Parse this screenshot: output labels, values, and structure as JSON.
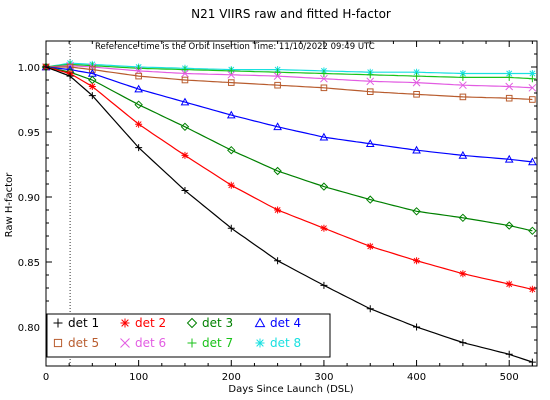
{
  "chart_data": {
    "type": "line",
    "title": "N21 VIIRS raw and fitted H-factor",
    "annotation": "Reference time is the Orbit Insertion Time: 11/10/2022 09:49 UTC",
    "xlabel": "Days Since Launch (DSL)",
    "ylabel": "Raw H-factor",
    "xlim": [
      0,
      530
    ],
    "ylim": [
      0.77,
      1.02
    ],
    "x_ticks": [
      0,
      100,
      200,
      300,
      400,
      500
    ],
    "y_ticks": [
      0.8,
      0.85,
      0.9,
      0.95,
      1.0
    ],
    "y_tick_labels": [
      "0.80",
      "0.85",
      "0.90",
      "0.95",
      "1.00"
    ],
    "reference_line_x": 26,
    "grid": false,
    "legend_position": "bottom-left",
    "series": [
      {
        "name": "det 1",
        "marker": "+",
        "color": "#000000",
        "x": [
          0,
          26,
          50,
          100,
          150,
          200,
          250,
          300,
          350,
          400,
          450,
          500,
          525
        ],
        "y": [
          1.0,
          0.993,
          0.978,
          0.938,
          0.905,
          0.876,
          0.851,
          0.832,
          0.814,
          0.8,
          0.788,
          0.779,
          0.773
        ]
      },
      {
        "name": "det 2",
        "marker": "*",
        "color": "#ff0000",
        "x": [
          0,
          26,
          50,
          100,
          150,
          200,
          250,
          300,
          350,
          400,
          450,
          500,
          525
        ],
        "y": [
          1.0,
          0.995,
          0.985,
          0.956,
          0.932,
          0.909,
          0.89,
          0.876,
          0.862,
          0.851,
          0.841,
          0.833,
          0.829
        ]
      },
      {
        "name": "det 3",
        "marker": "diamond",
        "color": "#008000",
        "x": [
          0,
          26,
          50,
          100,
          150,
          200,
          250,
          300,
          350,
          400,
          450,
          500,
          525
        ],
        "y": [
          1.0,
          0.996,
          0.99,
          0.971,
          0.954,
          0.936,
          0.92,
          0.908,
          0.898,
          0.889,
          0.884,
          0.878,
          0.874
        ]
      },
      {
        "name": "det 4",
        "marker": "triangle",
        "color": "#0000ff",
        "x": [
          0,
          26,
          50,
          100,
          150,
          200,
          250,
          300,
          350,
          400,
          450,
          500,
          525
        ],
        "y": [
          1.0,
          0.998,
          0.995,
          0.983,
          0.973,
          0.963,
          0.954,
          0.946,
          0.941,
          0.936,
          0.932,
          0.929,
          0.927
        ]
      },
      {
        "name": "det 5",
        "marker": "square",
        "color": "#b85c2e",
        "x": [
          0,
          26,
          50,
          100,
          150,
          200,
          250,
          300,
          350,
          400,
          450,
          500,
          525
        ],
        "y": [
          1.0,
          1.0,
          0.998,
          0.993,
          0.99,
          0.988,
          0.986,
          0.984,
          0.981,
          0.979,
          0.977,
          0.976,
          0.975
        ]
      },
      {
        "name": "det 6",
        "marker": "x",
        "color": "#e25ce2",
        "x": [
          0,
          26,
          50,
          100,
          150,
          200,
          250,
          300,
          350,
          400,
          450,
          500,
          525
        ],
        "y": [
          1.0,
          1.001,
          1.0,
          0.997,
          0.995,
          0.994,
          0.993,
          0.991,
          0.989,
          0.988,
          0.986,
          0.985,
          0.984
        ]
      },
      {
        "name": "det 7",
        "marker": "+",
        "color": "#19c219",
        "x": [
          0,
          26,
          50,
          100,
          150,
          200,
          250,
          300,
          350,
          400,
          450,
          500,
          525
        ],
        "y": [
          1.0,
          1.002,
          1.001,
          0.999,
          0.998,
          0.997,
          0.996,
          0.995,
          0.994,
          0.993,
          0.992,
          0.992,
          0.991
        ]
      },
      {
        "name": "det 8",
        "marker": "*",
        "color": "#19e0e0",
        "x": [
          0,
          26,
          50,
          100,
          150,
          200,
          250,
          300,
          350,
          400,
          450,
          500,
          525
        ],
        "y": [
          1.0,
          1.003,
          1.002,
          1.0,
          0.999,
          0.998,
          0.998,
          0.997,
          0.996,
          0.996,
          0.995,
          0.995,
          0.995
        ]
      }
    ]
  }
}
